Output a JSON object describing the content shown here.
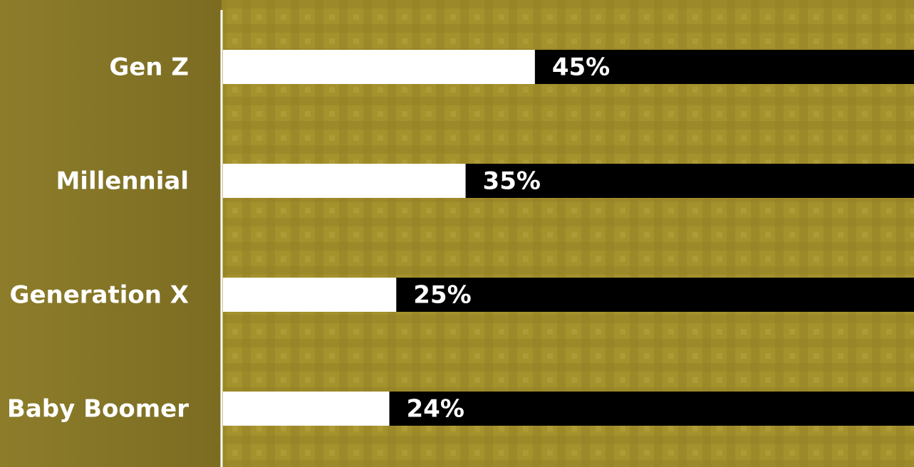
{
  "chart_data": {
    "type": "bar",
    "categories": [
      "Gen Z",
      "Millennial",
      "Generation X",
      "Baby Boomer"
    ],
    "values": [
      45,
      35,
      25,
      24
    ],
    "value_labels": [
      "45%",
      "35%",
      "25%",
      "24%"
    ],
    "color": "#ffffff",
    "track_color": "#000000",
    "xlim": [
      0,
      100
    ]
  }
}
